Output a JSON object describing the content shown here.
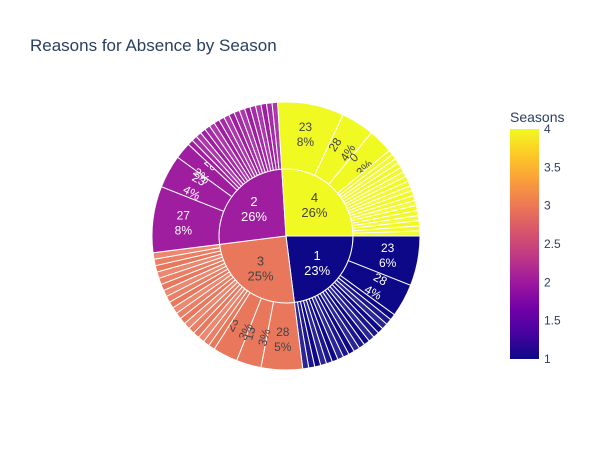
{
  "chart_data": {
    "type": "sunburst",
    "title": "Reasons for Absence by Season",
    "inner": [
      {
        "label": "1",
        "value": 23,
        "pct": "23%",
        "color": "#0d0887",
        "text": "light"
      },
      {
        "label": "3",
        "value": 25,
        "pct": "25%",
        "color": "#e9775c",
        "text": "dark"
      },
      {
        "label": "2",
        "value": 26,
        "pct": "26%",
        "color": "#9f1ea0",
        "text": "light"
      },
      {
        "label": "4",
        "value": 26,
        "pct": "26%",
        "color": "#f0f921",
        "text": "dark"
      }
    ],
    "outer_labeled": [
      {
        "parent": "1",
        "label": "23",
        "pct": "6%",
        "value": 6
      },
      {
        "parent": "1",
        "label": "28",
        "pct": "4%",
        "value": 4
      },
      {
        "parent": "3",
        "label": "28",
        "pct": "5%",
        "value": 5
      },
      {
        "parent": "3",
        "label": "13",
        "pct": "3%",
        "value": 3
      },
      {
        "parent": "3",
        "label": "23",
        "pct": "3%",
        "value": 3
      },
      {
        "parent": "2",
        "label": "27",
        "pct": "8%",
        "value": 8
      },
      {
        "parent": "2",
        "label": "23",
        "pct": "4%",
        "value": 4
      },
      {
        "parent": "2",
        "label": "28",
        "pct": "2%",
        "value": 2
      },
      {
        "parent": "4",
        "label": "23",
        "pct": "8%",
        "value": 8
      },
      {
        "parent": "4",
        "label": "28",
        "pct": "4%",
        "value": 4
      },
      {
        "parent": "4",
        "label": "0",
        "pct": "3%",
        "value": 3
      }
    ],
    "colorbar": {
      "title": "Seasons",
      "min": 1,
      "max": 4,
      "ticks": [
        "1",
        "1.5",
        "2",
        "2.5",
        "3",
        "3.5",
        "4"
      ]
    }
  }
}
